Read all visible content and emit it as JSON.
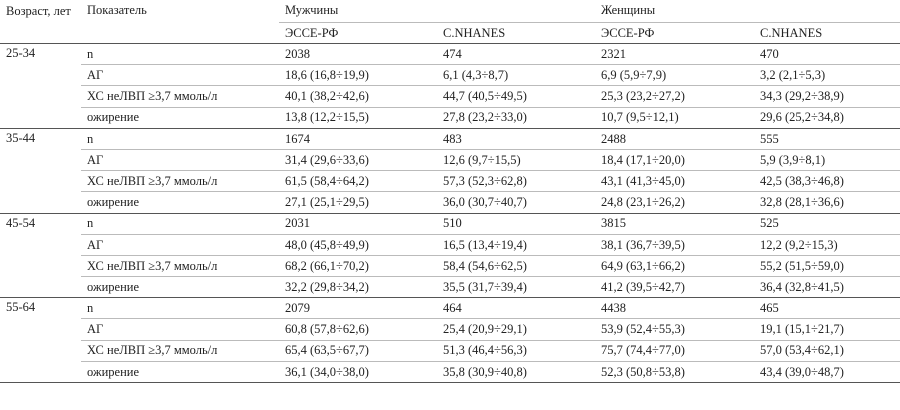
{
  "header": {
    "age": "Возраст, лет",
    "indicator": "Показатель",
    "men": "Мужчины",
    "women": "Женщины",
    "sub": [
      "ЭССЕ-РФ",
      "C.NHANES",
      "ЭССЕ-РФ",
      "C.NHANES"
    ]
  },
  "groups": [
    {
      "age": "25-34",
      "rows": [
        {
          "label": "n",
          "values": [
            "2038",
            "474",
            "2321",
            "470"
          ]
        },
        {
          "label": "АГ",
          "values": [
            "18,6 (16,8÷19,9)",
            "6,1 (4,3÷8,7)",
            "6,9 (5,9÷7,9)",
            "3,2 (2,1÷5,3)"
          ]
        },
        {
          "label": "ХС неЛВП ≥3,7 ммоль/л",
          "values": [
            "40,1 (38,2÷42,6)",
            "44,7 (40,5÷49,5)",
            "25,3 (23,2÷27,2)",
            "34,3 (29,2÷38,9)"
          ]
        },
        {
          "label": "ожирение",
          "values": [
            "13,8 (12,2÷15,5)",
            "27,8 (23,2÷33,0)",
            "10,7 (9,5÷12,1)",
            "29,6 (25,2÷34,8)"
          ]
        }
      ]
    },
    {
      "age": "35-44",
      "rows": [
        {
          "label": "n",
          "values": [
            "1674",
            "483",
            "2488",
            "555"
          ]
        },
        {
          "label": "АГ",
          "values": [
            "31,4 (29,6÷33,6)",
            "12,6 (9,7÷15,5)",
            "18,4 (17,1÷20,0)",
            "5,9 (3,9÷8,1)"
          ]
        },
        {
          "label": "ХС неЛВП ≥3,7 ммоль/л",
          "values": [
            "61,5 (58,4÷64,2)",
            "57,3 (52,3÷62,8)",
            "43,1 (41,3÷45,0)",
            "42,5 (38,3÷46,8)"
          ]
        },
        {
          "label": "ожирение",
          "values": [
            "27,1 (25,1÷29,5)",
            "36,0 (30,7÷40,7)",
            "24,8 (23,1÷26,2)",
            "32,8 (28,1÷36,6)"
          ]
        }
      ]
    },
    {
      "age": "45-54",
      "rows": [
        {
          "label": "n",
          "values": [
            "2031",
            "510",
            "3815",
            "525"
          ]
        },
        {
          "label": "АГ",
          "values": [
            "48,0 (45,8÷49,9)",
            "16,5 (13,4÷19,4)",
            "38,1 (36,7÷39,5)",
            "12,2 (9,2÷15,3)"
          ]
        },
        {
          "label": "ХС неЛВП ≥3,7 ммоль/л",
          "values": [
            "68,2 (66,1÷70,2)",
            "58,4 (54,6÷62,5)",
            "64,9 (63,1÷66,2)",
            "55,2 (51,5÷59,0)"
          ]
        },
        {
          "label": "ожирение",
          "values": [
            "32,2 (29,8÷34,2)",
            "35,5 (31,7÷39,4)",
            "41,2 (39,5÷42,7)",
            "36,4 (32,8÷41,5)"
          ]
        }
      ]
    },
    {
      "age": "55-64",
      "rows": [
        {
          "label": "n",
          "values": [
            "2079",
            "464",
            "4438",
            "465"
          ]
        },
        {
          "label": "АГ",
          "values": [
            "60,8 (57,8÷62,6)",
            "25,4 (20,9÷29,1)",
            "53,9 (52,4÷55,3)",
            "19,1 (15,1÷21,7)"
          ]
        },
        {
          "label": "ХС неЛВП ≥3,7 ммоль/л",
          "values": [
            "65,4 (63,5÷67,7)",
            "51,3 (46,4÷56,3)",
            "75,7 (74,4÷77,0)",
            "57,0 (53,4÷62,1)"
          ]
        },
        {
          "label": "ожирение",
          "values": [
            "36,1 (34,0÷38,0)",
            "35,8 (30,9÷40,8)",
            "52,3 (50,8÷53,8)",
            "43,4 (39,0÷48,7)"
          ]
        }
      ]
    }
  ]
}
